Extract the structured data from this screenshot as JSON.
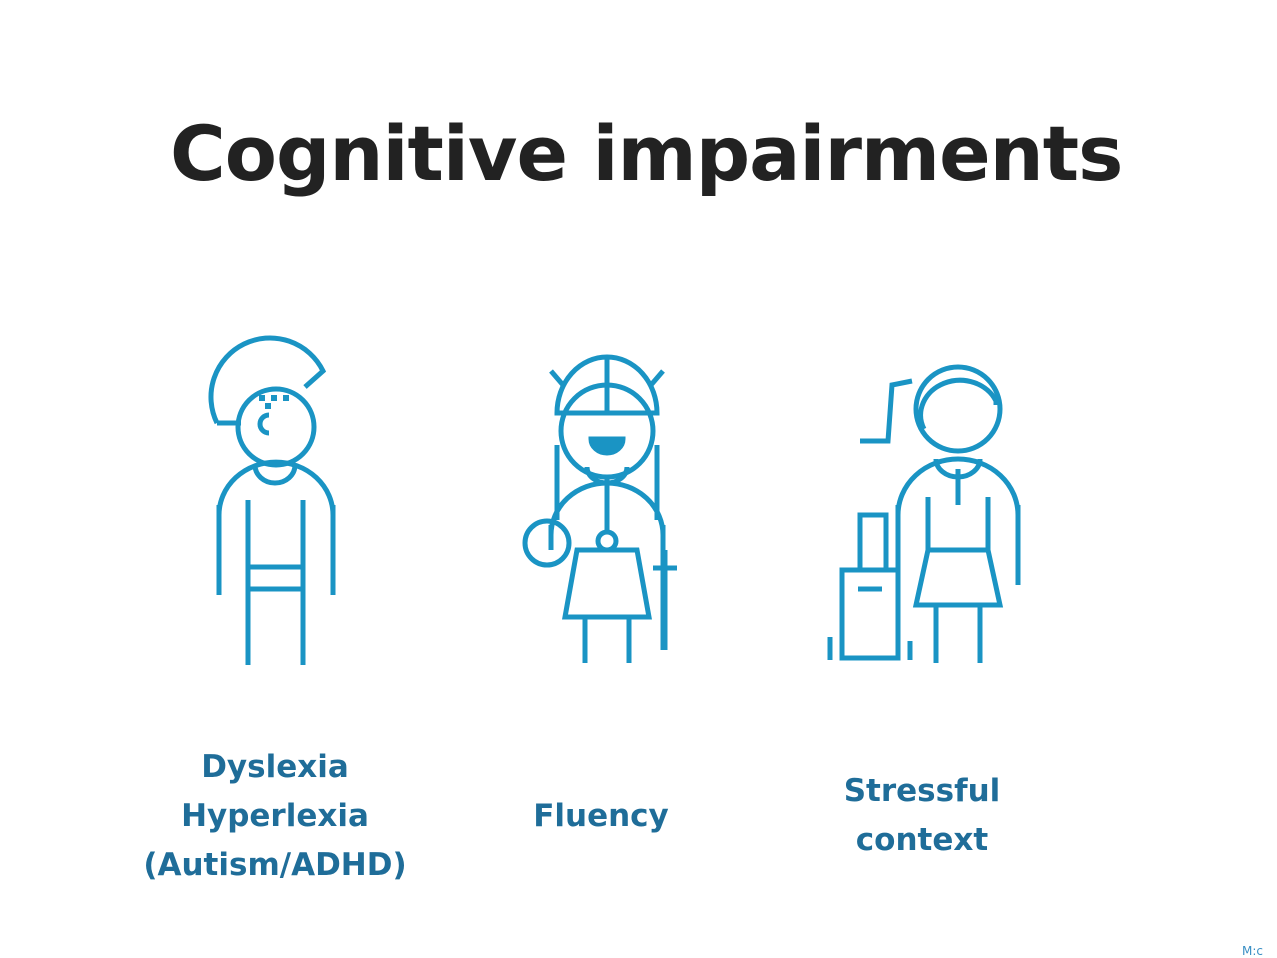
{
  "slide": {
    "title": "Cognitive impairments",
    "accent_color": "#1a94c4",
    "caption_color": "#1f6d99",
    "title_color": "#222222"
  },
  "figures": [
    {
      "icon": "dyslexia-person-icon",
      "caption_lines": [
        "Dyslexia",
        "Hyperlexia",
        "(Autism/ADHD)"
      ]
    },
    {
      "icon": "child-with-ball-icon",
      "caption_lines": [
        "Fluency"
      ]
    },
    {
      "icon": "traveler-with-suitcase-icon",
      "caption_lines": [
        "Stressful",
        "context"
      ]
    }
  ],
  "footer": {
    "corner_text": "M:c"
  }
}
